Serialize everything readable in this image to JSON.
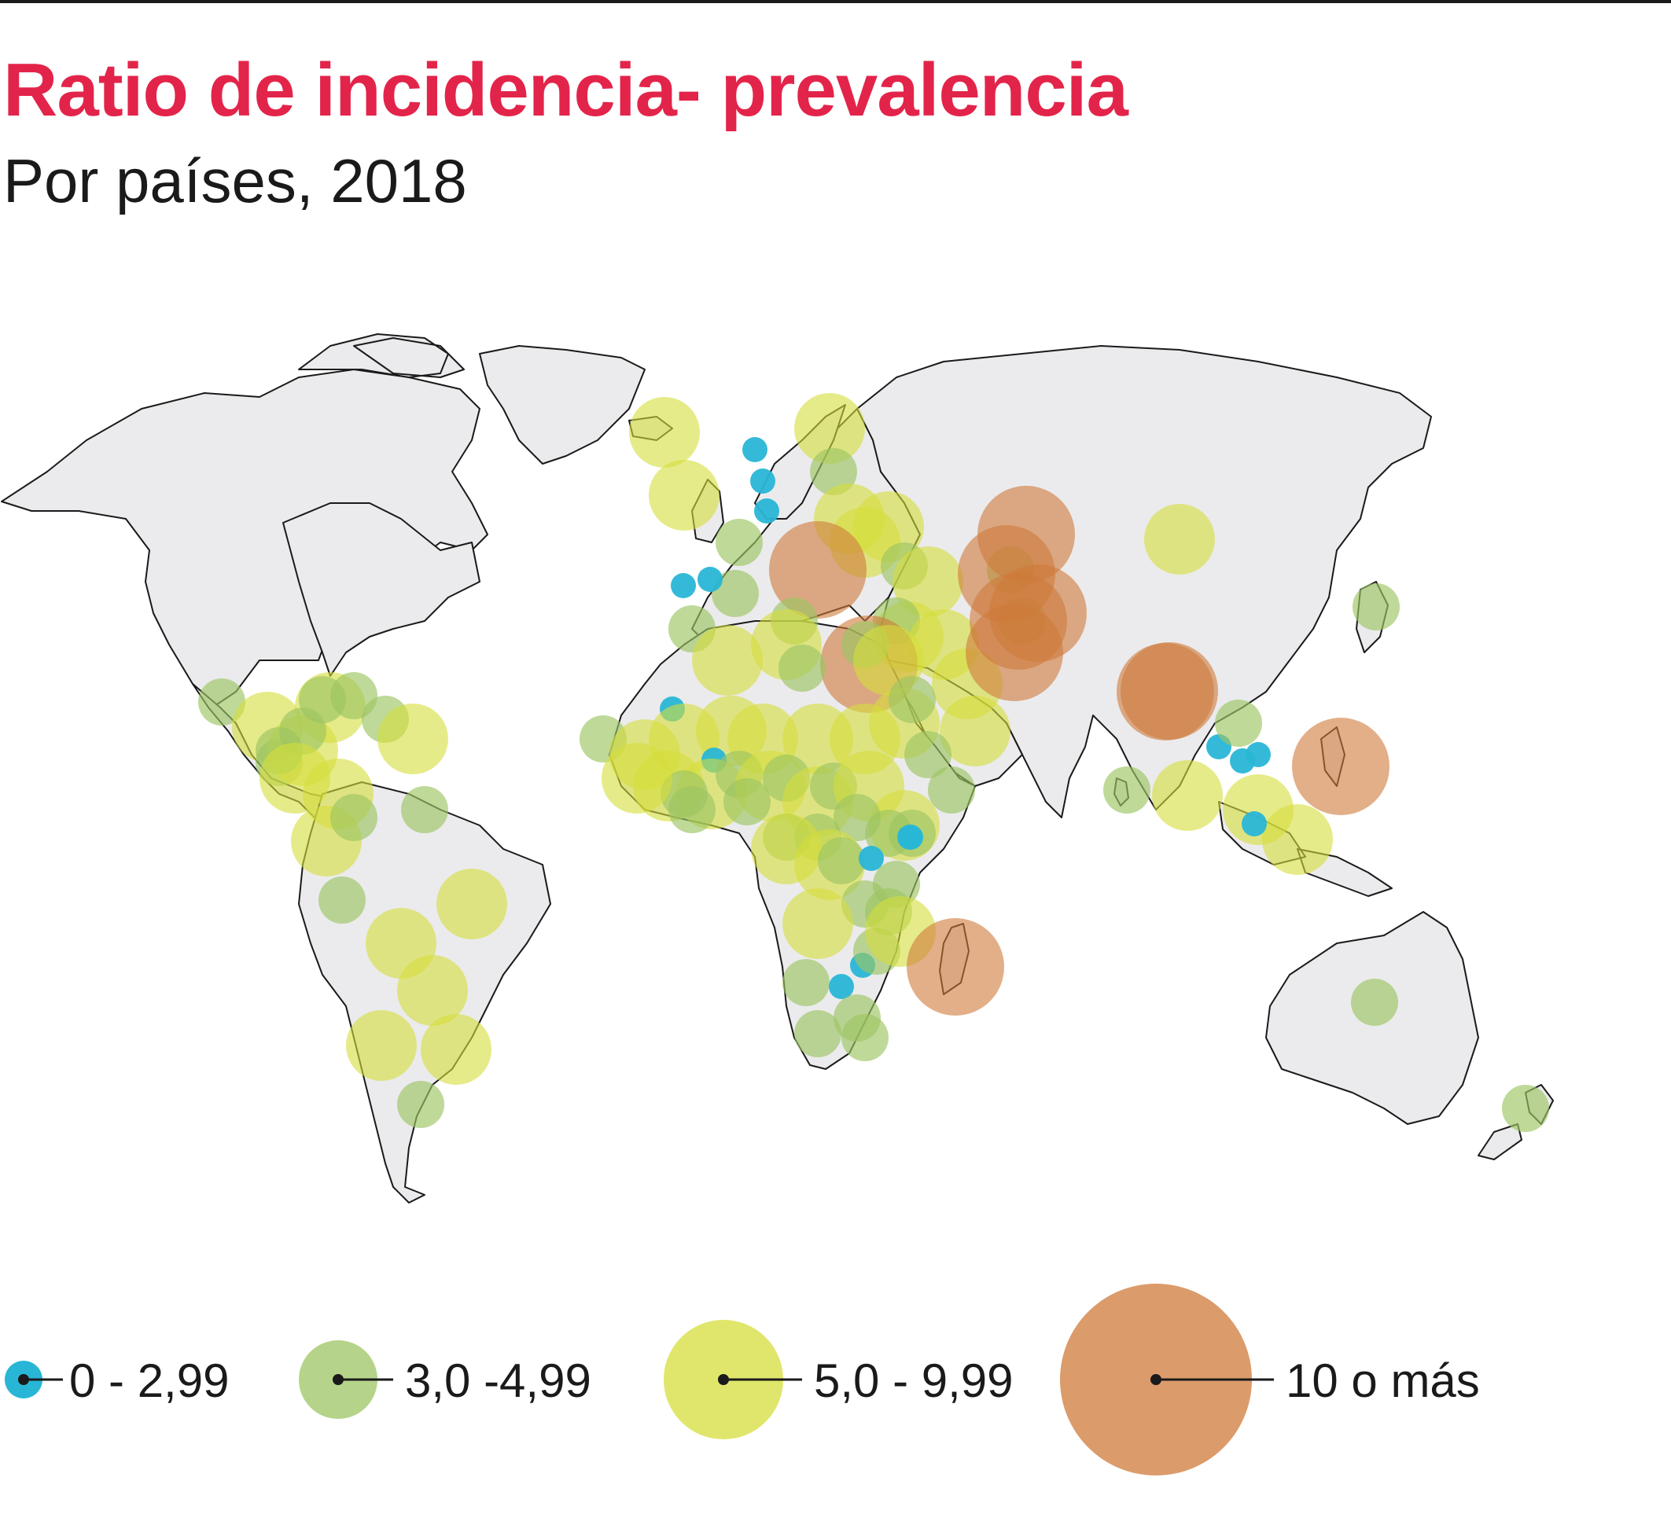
{
  "header": {
    "title": "Ratio de incidencia- prevalencia",
    "subtitle": "Por países, 2018"
  },
  "colors": {
    "title": "#e3244a",
    "land": "#ebebed",
    "border": "#1a1a1a",
    "cat_low": "#29b6d6",
    "cat_mid": "#9cc563",
    "cat_high": "#d6dd3a",
    "cat_top": "#cf7a3a"
  },
  "legend": {
    "items": [
      {
        "key": "low",
        "label": "0 - 2,99"
      },
      {
        "key": "mid",
        "label": "3,0 -4,99"
      },
      {
        "key": "high",
        "label": "5,0 - 9,99"
      },
      {
        "key": "top",
        "label": "10 o más"
      }
    ]
  }
}
